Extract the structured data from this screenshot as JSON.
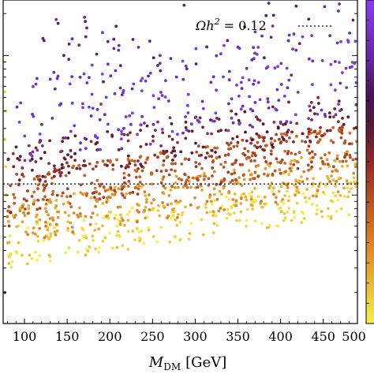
{
  "chart_data": {
    "type": "scatter",
    "xlabel": "M_DM [GeV]",
    "xlabel_main": "M",
    "xlabel_sub": "DM",
    "xlabel_unit": "[GeV]",
    "xlim": [
      75,
      490
    ],
    "xticks": [
      100,
      150,
      200,
      250,
      300,
      350,
      400,
      450,
      500
    ],
    "x_tick_labels": [
      "100",
      "150",
      "200",
      "250",
      "300",
      "350",
      "400",
      "450",
      "500"
    ],
    "y_scale": "log",
    "reference_line": {
      "label": "Ωh² = 0.12",
      "label_parts": {
        "symbol": "Ωh",
        "sup": "2",
        "rest": " = 0.12"
      },
      "value": 0.12,
      "style": "dotted",
      "color": "#333333"
    },
    "legend_placement": "top-right",
    "colormap": [
      "#f7f047",
      "#e7a52f",
      "#c9621f",
      "#8e2a2a",
      "#3b0f3f",
      "#6b2aa8",
      "#8a3cf0"
    ],
    "colorbar_position": "right, cropped",
    "grid": false,
    "bands": [
      {
        "x0": 80,
        "x1": 490,
        "y0": 0.03,
        "y1": 0.06,
        "color_t": 0.05,
        "n": 260
      },
      {
        "x0": 80,
        "x1": 490,
        "y0": 0.045,
        "y1": 0.09,
        "color_t": 0.2,
        "n": 330
      },
      {
        "x0": 80,
        "x1": 490,
        "y0": 0.07,
        "y1": 0.14,
        "color_t": 0.38,
        "n": 360
      },
      {
        "x0": 80,
        "x1": 490,
        "y0": 0.11,
        "y1": 0.23,
        "color_t": 0.55,
        "n": 200
      },
      {
        "x0": 90,
        "x1": 490,
        "y0": 0.16,
        "y1": 0.7,
        "color_t": 0.9,
        "n": 230
      },
      {
        "x0": 120,
        "x1": 490,
        "y0": 0.5,
        "y1": 1.8,
        "color_t": 0.8,
        "n": 70
      }
    ],
    "left_edge_points": [
      {
        "x": 76,
        "y": 0.9,
        "t": 0.02
      },
      {
        "x": 77,
        "y": 0.55,
        "t": 0.05
      },
      {
        "x": 78,
        "y": 0.4,
        "t": 0.08
      },
      {
        "x": 77,
        "y": 0.25,
        "t": 0.1
      },
      {
        "x": 78,
        "y": 0.16,
        "t": 0.06
      },
      {
        "x": 79,
        "y": 0.1,
        "t": 0.15
      },
      {
        "x": 80,
        "y": 0.07,
        "t": 0.3
      },
      {
        "x": 77,
        "y": 0.02,
        "t": 0.85
      },
      {
        "x": 82,
        "y": 0.06,
        "t": 0.45
      },
      {
        "x": 84,
        "y": 0.075,
        "t": 0.55
      }
    ]
  }
}
